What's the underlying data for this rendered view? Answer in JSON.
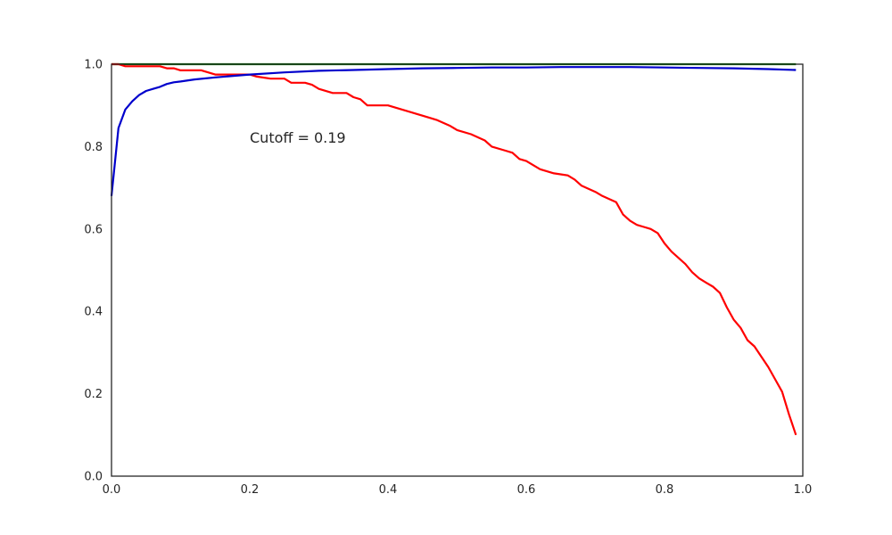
{
  "chart_data": {
    "type": "line",
    "title": "",
    "xlabel": "",
    "ylabel": "",
    "xlim": [
      0.0,
      1.0
    ],
    "ylim": [
      0.0,
      1.0
    ],
    "grid": false,
    "x_ticks": [
      "0.0",
      "0.2",
      "0.4",
      "0.6",
      "0.8",
      "1.0"
    ],
    "y_ticks": [
      "0.0",
      "0.2",
      "0.4",
      "0.6",
      "0.8",
      "1.0"
    ],
    "annotations": [
      {
        "text": "Cutoff = 0.19",
        "x": 0.2,
        "y": 0.81
      }
    ],
    "series": [
      {
        "color": "#008000",
        "points": [
          [
            0.0,
            1.0
          ],
          [
            0.1,
            1.0
          ],
          [
            0.2,
            1.0
          ],
          [
            0.3,
            1.0
          ],
          [
            0.4,
            1.0
          ],
          [
            0.5,
            1.0
          ],
          [
            0.6,
            1.0
          ],
          [
            0.7,
            1.0
          ],
          [
            0.8,
            1.0
          ],
          [
            0.9,
            1.0
          ],
          [
            0.99,
            1.0
          ]
        ]
      },
      {
        "color": "#ff0000",
        "points": [
          [
            0.0,
            1.0
          ],
          [
            0.01,
            1.0
          ],
          [
            0.02,
            0.995
          ],
          [
            0.07,
            0.995
          ],
          [
            0.08,
            0.99
          ],
          [
            0.09,
            0.99
          ],
          [
            0.1,
            0.985
          ],
          [
            0.13,
            0.985
          ],
          [
            0.15,
            0.975
          ],
          [
            0.18,
            0.975
          ],
          [
            0.2,
            0.975
          ],
          [
            0.21,
            0.97
          ],
          [
            0.23,
            0.965
          ],
          [
            0.25,
            0.965
          ],
          [
            0.26,
            0.955
          ],
          [
            0.28,
            0.955
          ],
          [
            0.29,
            0.95
          ],
          [
            0.3,
            0.94
          ],
          [
            0.32,
            0.93
          ],
          [
            0.34,
            0.93
          ],
          [
            0.35,
            0.92
          ],
          [
            0.36,
            0.915
          ],
          [
            0.37,
            0.9
          ],
          [
            0.4,
            0.9
          ],
          [
            0.42,
            0.89
          ],
          [
            0.44,
            0.88
          ],
          [
            0.46,
            0.87
          ],
          [
            0.47,
            0.865
          ],
          [
            0.49,
            0.85
          ],
          [
            0.5,
            0.84
          ],
          [
            0.52,
            0.83
          ],
          [
            0.54,
            0.815
          ],
          [
            0.55,
            0.8
          ],
          [
            0.57,
            0.79
          ],
          [
            0.58,
            0.785
          ],
          [
            0.59,
            0.77
          ],
          [
            0.6,
            0.765
          ],
          [
            0.62,
            0.745
          ],
          [
            0.64,
            0.735
          ],
          [
            0.66,
            0.73
          ],
          [
            0.67,
            0.72
          ],
          [
            0.68,
            0.705
          ],
          [
            0.7,
            0.69
          ],
          [
            0.71,
            0.68
          ],
          [
            0.73,
            0.665
          ],
          [
            0.74,
            0.635
          ],
          [
            0.75,
            0.62
          ],
          [
            0.76,
            0.61
          ],
          [
            0.77,
            0.605
          ],
          [
            0.78,
            0.6
          ],
          [
            0.79,
            0.59
          ],
          [
            0.8,
            0.565
          ],
          [
            0.81,
            0.545
          ],
          [
            0.82,
            0.53
          ],
          [
            0.83,
            0.515
          ],
          [
            0.84,
            0.495
          ],
          [
            0.85,
            0.48
          ],
          [
            0.86,
            0.47
          ],
          [
            0.87,
            0.46
          ],
          [
            0.88,
            0.445
          ],
          [
            0.89,
            0.41
          ],
          [
            0.9,
            0.38
          ],
          [
            0.91,
            0.36
          ],
          [
            0.92,
            0.33
          ],
          [
            0.93,
            0.315
          ],
          [
            0.94,
            0.29
          ],
          [
            0.95,
            0.265
          ],
          [
            0.96,
            0.235
          ],
          [
            0.97,
            0.205
          ],
          [
            0.98,
            0.15
          ],
          [
            0.99,
            0.1
          ]
        ]
      },
      {
        "color": "#0000cc",
        "points": [
          [
            0.0,
            0.68
          ],
          [
            0.01,
            0.845
          ],
          [
            0.02,
            0.89
          ],
          [
            0.03,
            0.91
          ],
          [
            0.04,
            0.925
          ],
          [
            0.05,
            0.935
          ],
          [
            0.06,
            0.94
          ],
          [
            0.07,
            0.945
          ],
          [
            0.08,
            0.952
          ],
          [
            0.09,
            0.956
          ],
          [
            0.1,
            0.958
          ],
          [
            0.12,
            0.963
          ],
          [
            0.15,
            0.968
          ],
          [
            0.18,
            0.972
          ],
          [
            0.2,
            0.975
          ],
          [
            0.25,
            0.98
          ],
          [
            0.3,
            0.984
          ],
          [
            0.35,
            0.986
          ],
          [
            0.4,
            0.988
          ],
          [
            0.45,
            0.99
          ],
          [
            0.5,
            0.991
          ],
          [
            0.55,
            0.992
          ],
          [
            0.6,
            0.992
          ],
          [
            0.65,
            0.993
          ],
          [
            0.7,
            0.993
          ],
          [
            0.75,
            0.993
          ],
          [
            0.8,
            0.992
          ],
          [
            0.85,
            0.991
          ],
          [
            0.9,
            0.99
          ],
          [
            0.95,
            0.988
          ],
          [
            0.99,
            0.986
          ]
        ]
      }
    ]
  }
}
